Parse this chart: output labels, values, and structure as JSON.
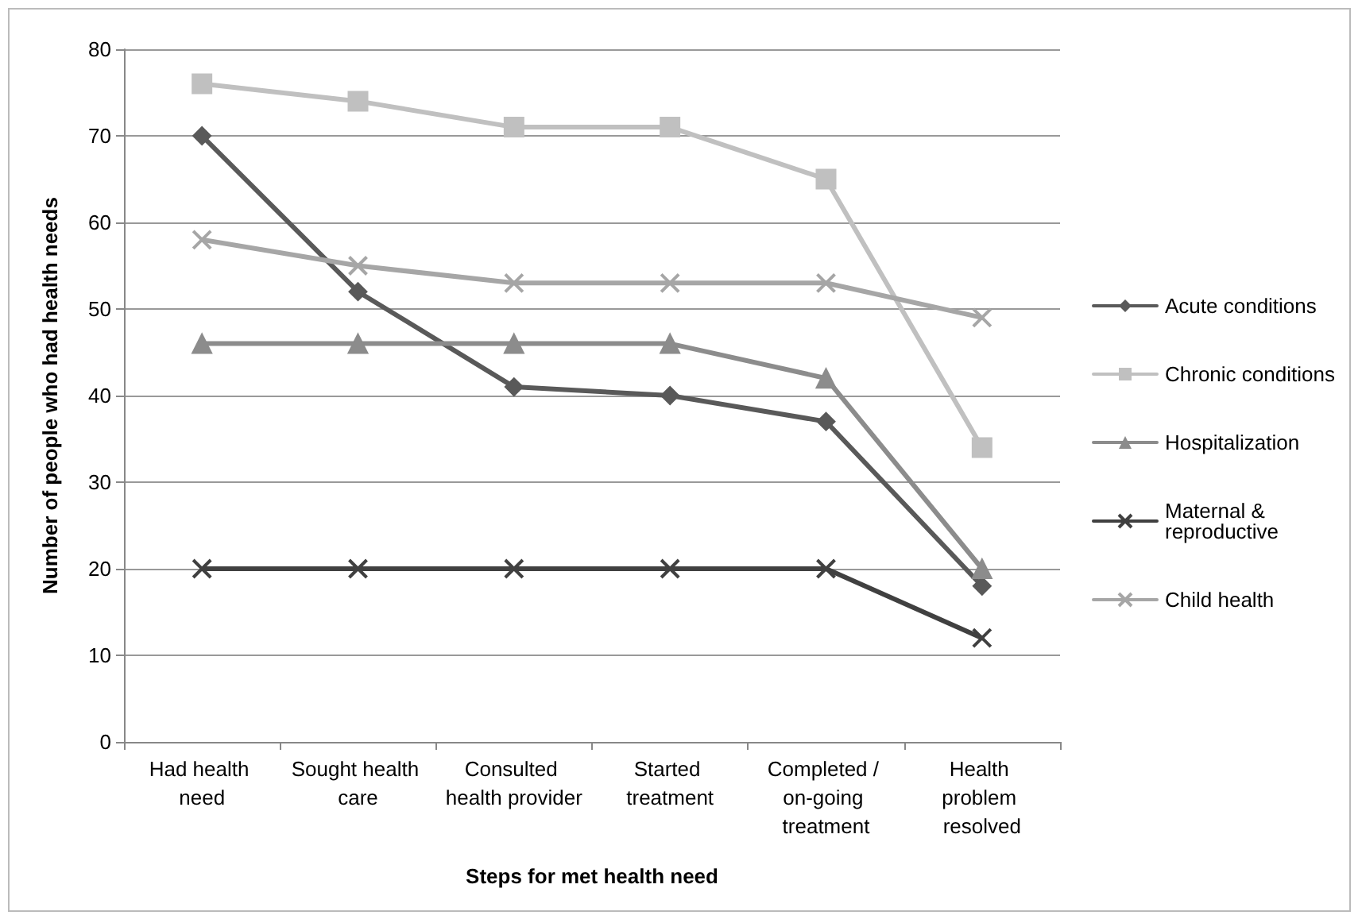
{
  "chart_data": {
    "type": "line",
    "xlabel": "Steps for met health need",
    "ylabel": "Number of people who had health needs",
    "categories": [
      "Had health need",
      "Sought health care",
      "Consulted health provider",
      "Started treatment",
      "Completed / on-going treatment",
      "Health problem resolved"
    ],
    "series": [
      {
        "name": "Acute conditions",
        "color": "#595959",
        "marker": "diamond",
        "values": [
          70,
          52,
          41,
          40,
          37,
          18
        ]
      },
      {
        "name": "Chronic conditions",
        "color": "#c0c0c0",
        "marker": "square",
        "values": [
          76,
          74,
          71,
          71,
          65,
          34
        ]
      },
      {
        "name": "Hospitalization",
        "color": "#8c8c8c",
        "marker": "triangle",
        "values": [
          46,
          46,
          46,
          46,
          42,
          20
        ]
      },
      {
        "name": "Maternal & reproductive",
        "color": "#404040",
        "marker": "cross",
        "values": [
          20,
          20,
          20,
          20,
          20,
          12
        ]
      },
      {
        "name": "Child health",
        "color": "#a6a6a6",
        "marker": "cross",
        "values": [
          58,
          55,
          53,
          53,
          53,
          49
        ]
      }
    ],
    "ylim": [
      0,
      80
    ],
    "yticks": [
      0,
      10,
      20,
      30,
      40,
      50,
      60,
      70,
      80
    ],
    "grid": "y",
    "legend": "right",
    "line_style": "solid"
  }
}
